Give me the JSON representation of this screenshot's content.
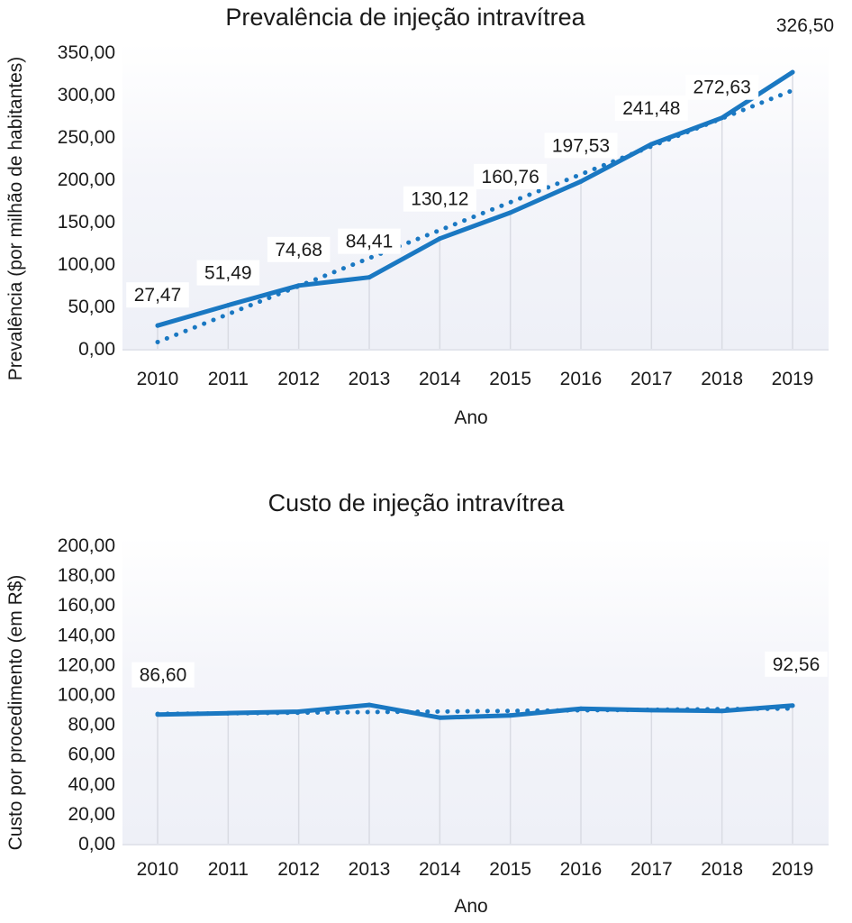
{
  "chart_data": [
    {
      "type": "line",
      "title": "Prevalência de injeção intravítrea",
      "xlabel": "Ano",
      "ylabel": "Prevalência (por milhão de habitantes)",
      "categories": [
        "2010",
        "2011",
        "2012",
        "2013",
        "2014",
        "2015",
        "2016",
        "2017",
        "2018",
        "2019"
      ],
      "series": [
        {
          "name": "Prevalência",
          "style": "solid",
          "values": [
            27.47,
            51.49,
            74.68,
            84.41,
            130.12,
            160.76,
            197.53,
            241.48,
            272.63,
            326.5
          ]
        },
        {
          "name": "Tendência linear",
          "style": "dotted",
          "values": [
            8,
            41,
            74,
            107,
            140,
            173,
            206,
            239,
            272,
            305
          ]
        }
      ],
      "data_labels": [
        "27,47",
        "51,49",
        "74,68",
        "84,41",
        "130,12",
        "160,76",
        "197,53",
        "241,48",
        "272,63",
        "326,50"
      ],
      "yticks": [
        "0,00",
        "50,00",
        "100,00",
        "150,00",
        "200,00",
        "250,00",
        "300,00",
        "350,00"
      ],
      "ytick_values": [
        0,
        50,
        100,
        150,
        200,
        250,
        300,
        350
      ],
      "ylim": [
        0,
        350
      ],
      "grid": "vertical",
      "color": "#1a78c2",
      "plot_bg": "#eef0f7"
    },
    {
      "type": "line",
      "title": "Custo de injeção intravítrea",
      "xlabel": "Ano",
      "ylabel": "Custo por procedimento (em R$)",
      "categories": [
        "2010",
        "2011",
        "2012",
        "2013",
        "2014",
        "2015",
        "2016",
        "2017",
        "2018",
        "2019"
      ],
      "series": [
        {
          "name": "Custo",
          "style": "solid",
          "values": [
            86.6,
            87.5,
            88.5,
            93.0,
            84.5,
            86.0,
            90.5,
            89.5,
            89.0,
            92.56
          ]
        },
        {
          "name": "Tendência linear",
          "style": "dotted",
          "values": [
            87.0,
            87.4,
            87.8,
            88.2,
            88.6,
            89.0,
            89.4,
            89.8,
            90.2,
            90.6
          ]
        }
      ],
      "data_labels": [
        "86,60",
        "",
        "",
        "",
        "",
        "",
        "",
        "",
        "",
        "92,56"
      ],
      "yticks": [
        "0,00",
        "20,00",
        "40,00",
        "60,00",
        "80,00",
        "100,00",
        "120,00",
        "140,00",
        "160,00",
        "180,00",
        "200,00"
      ],
      "ytick_values": [
        0,
        20,
        40,
        60,
        80,
        100,
        120,
        140,
        160,
        180,
        200
      ],
      "ylim": [
        0,
        200
      ],
      "grid": "vertical",
      "color": "#1a78c2",
      "plot_bg": "#eef0f7"
    }
  ]
}
